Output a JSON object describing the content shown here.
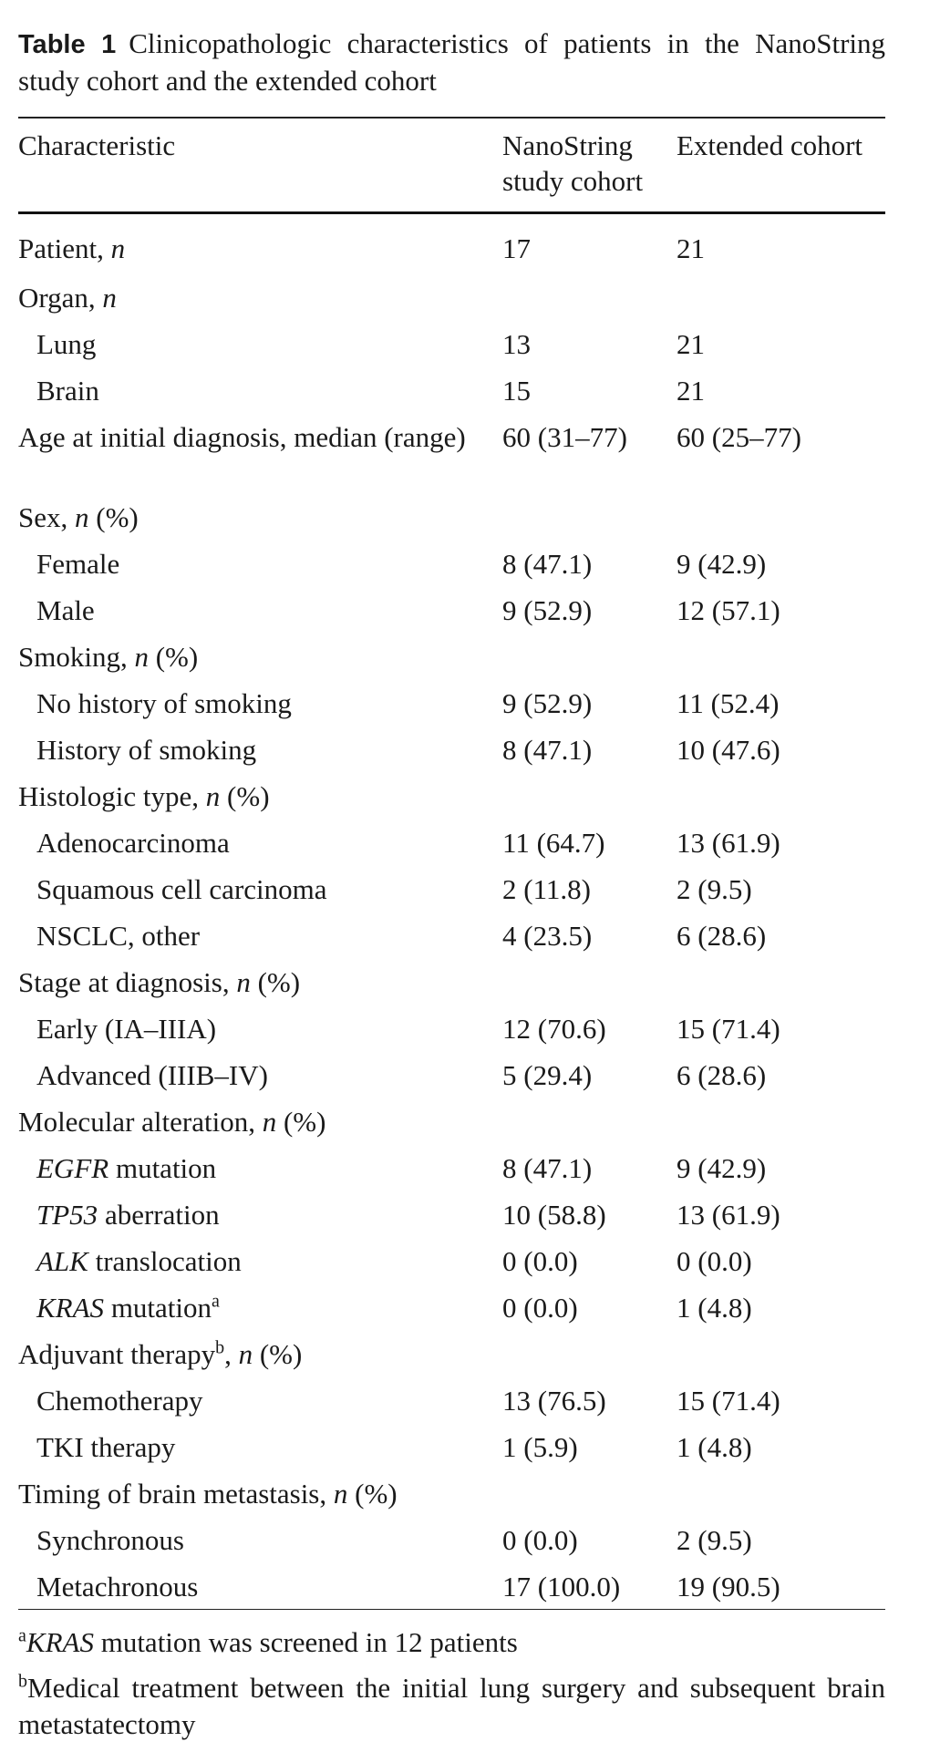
{
  "caption": {
    "label": "Table 1",
    "text": "Clinicopathologic characteristics of patients in the NanoString study cohort and the extended cohort"
  },
  "headers": {
    "characteristic": "Characteristic",
    "nanostring": "NanoString study cohort",
    "extended": "Extended cohort"
  },
  "rows": {
    "patient": {
      "label": "Patient, ",
      "unit": "n",
      "nano": "17",
      "ext": "21"
    },
    "organ": {
      "label": "Organ, ",
      "unit": "n"
    },
    "lung": {
      "label": "Lung",
      "nano": "13",
      "ext": "21"
    },
    "brain": {
      "label": "Brain",
      "nano": "15",
      "ext": "21"
    },
    "age": {
      "label": "Age at initial diagnosis, median (range)",
      "nano": "60 (31–77)",
      "ext": "60 (25–77)"
    },
    "sex": {
      "label": "Sex, ",
      "unit": "n",
      "suffix": " (%)"
    },
    "female": {
      "label": "Female",
      "nano": "8 (47.1)",
      "ext": "9 (42.9)"
    },
    "male": {
      "label": "Male",
      "nano": "9 (52.9)",
      "ext": "12 (57.1)"
    },
    "smoking": {
      "label": "Smoking, ",
      "unit": "n",
      "suffix": " (%)"
    },
    "no_smoking": {
      "label": "No history of smoking",
      "nano": "9 (52.9)",
      "ext": "11 (52.4)"
    },
    "smoking_hist": {
      "label": "History of smoking",
      "nano": "8 (47.1)",
      "ext": "10 (47.6)"
    },
    "histologic": {
      "label": "Histologic type, ",
      "unit": "n",
      "suffix": " (%)"
    },
    "adeno": {
      "label": "Adenocarcinoma",
      "nano": "11 (64.7)",
      "ext": "13 (61.9)"
    },
    "squamous": {
      "label": "Squamous cell carcinoma",
      "nano": "2 (11.8)",
      "ext": "2 (9.5)"
    },
    "nsclc_other": {
      "label": "NSCLC, other",
      "nano": "4 (23.5)",
      "ext": "6 (28.6)"
    },
    "stage": {
      "label": "Stage at diagnosis, ",
      "unit": "n",
      "suffix": " (%)"
    },
    "early": {
      "label": "Early (IA–IIIA)",
      "nano": "12 (70.6)",
      "ext": "15 (71.4)"
    },
    "advanced": {
      "label": "Advanced (IIIB–IV)",
      "nano": "5 (29.4)",
      "ext": "6 (28.6)"
    },
    "molecular": {
      "label": "Molecular alteration, ",
      "unit": "n",
      "suffix": " (%)"
    },
    "egfr": {
      "gene": "EGFR",
      "label": " mutation",
      "nano": "8 (47.1)",
      "ext": "9 (42.9)"
    },
    "tp53": {
      "gene": "TP53",
      "label": " aberration",
      "nano": "10 (58.8)",
      "ext": "13 (61.9)"
    },
    "alk": {
      "gene": "ALK",
      "label": " translocation",
      "nano": "0 (0.0)",
      "ext": "0 (0.0)"
    },
    "kras": {
      "gene": "KRAS",
      "label": " mutation",
      "mark": "a",
      "nano": "0 (0.0)",
      "ext": "1 (4.8)"
    },
    "adjuvant": {
      "label": "Adjuvant therapy",
      "mark": "b",
      "sep": ", ",
      "unit": "n",
      "suffix": " (%)"
    },
    "chemo": {
      "label": "Chemotherapy",
      "nano": "13 (76.5)",
      "ext": "15 (71.4)"
    },
    "tki": {
      "label": "TKI therapy",
      "nano": "1 (5.9)",
      "ext": "1 (4.8)"
    },
    "timing": {
      "label": "Timing of brain metastasis, ",
      "unit": "n",
      "suffix": " (%)"
    },
    "synchronous": {
      "label": "Synchronous",
      "nano": "0 (0.0)",
      "ext": "2 (9.5)"
    },
    "metachronous": {
      "label": "Metachronous",
      "nano": "17 (100.0)",
      "ext": "19 (90.5)"
    }
  },
  "footnotes": {
    "a": {
      "mark": "a",
      "gene": "KRAS",
      "text": " mutation was screened in 12 patients"
    },
    "b": {
      "mark": "b",
      "text": "Medical treatment between the initial lung surgery and subsequent brain metastatectomy"
    }
  }
}
